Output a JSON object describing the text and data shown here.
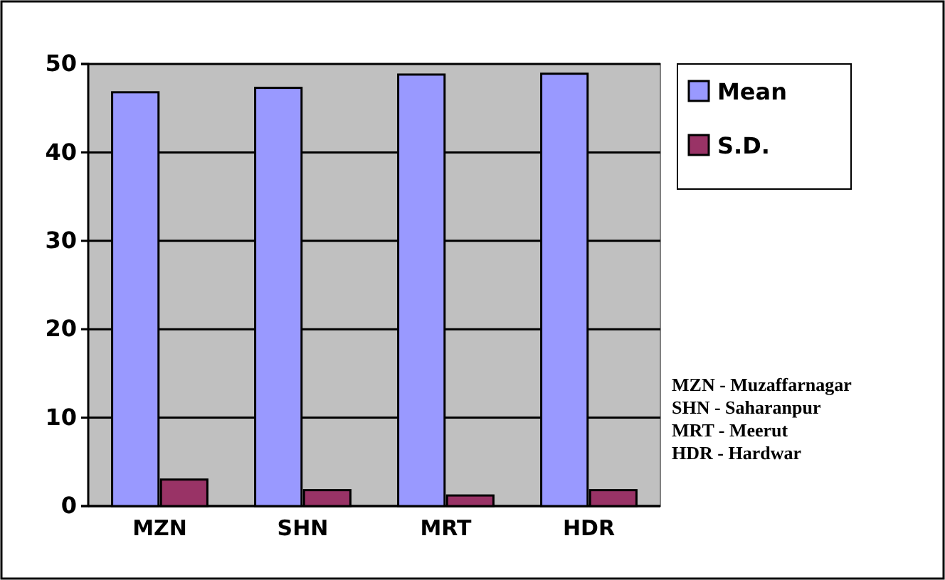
{
  "chart_data": {
    "type": "bar",
    "categories": [
      "MZN",
      "SHN",
      "MRT",
      "HDR"
    ],
    "series": [
      {
        "name": "Mean",
        "color": "#9999ff",
        "values": [
          46.8,
          47.3,
          48.8,
          48.9
        ]
      },
      {
        "name": "S.D.",
        "color": "#993366",
        "values": [
          3.0,
          1.8,
          1.2,
          1.8
        ]
      }
    ],
    "ylim": [
      0,
      50
    ],
    "yticks": [
      0,
      10,
      20,
      30,
      40,
      50
    ],
    "grid": "y",
    "legend": "top right",
    "annotations": [
      "MZN - Muzaffarnagar",
      "SHN - Saharanpur",
      "MRT - Meerut",
      "HDR - Hardwar"
    ]
  }
}
